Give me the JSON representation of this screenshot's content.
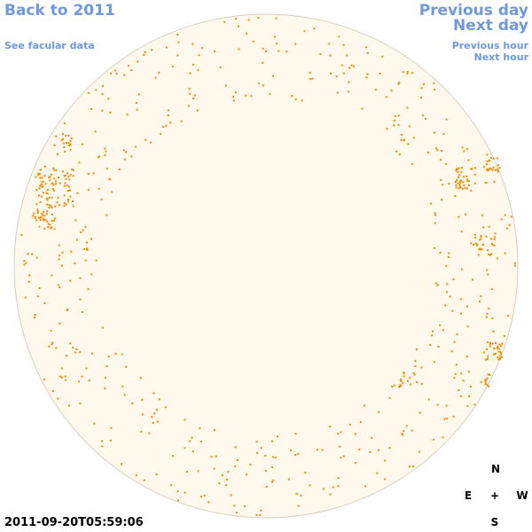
{
  "nav": {
    "back_label": "Back to 2011",
    "facular_label": "See facular data",
    "prev_day_label": "Previous day",
    "next_day_label": "Next day",
    "prev_hour_label": "Previous hour",
    "next_hour_label": "Next hour"
  },
  "timestamp": "2011-09-20T05:59:06",
  "compass": {
    "north": "N",
    "east": "E",
    "center": "+",
    "west": "W",
    "south": "S"
  },
  "colors": {
    "link": "#6f98de",
    "disk_fill": "#fff8ec",
    "disk_border": "#d9cfbf",
    "feature": "#f08c00"
  }
}
